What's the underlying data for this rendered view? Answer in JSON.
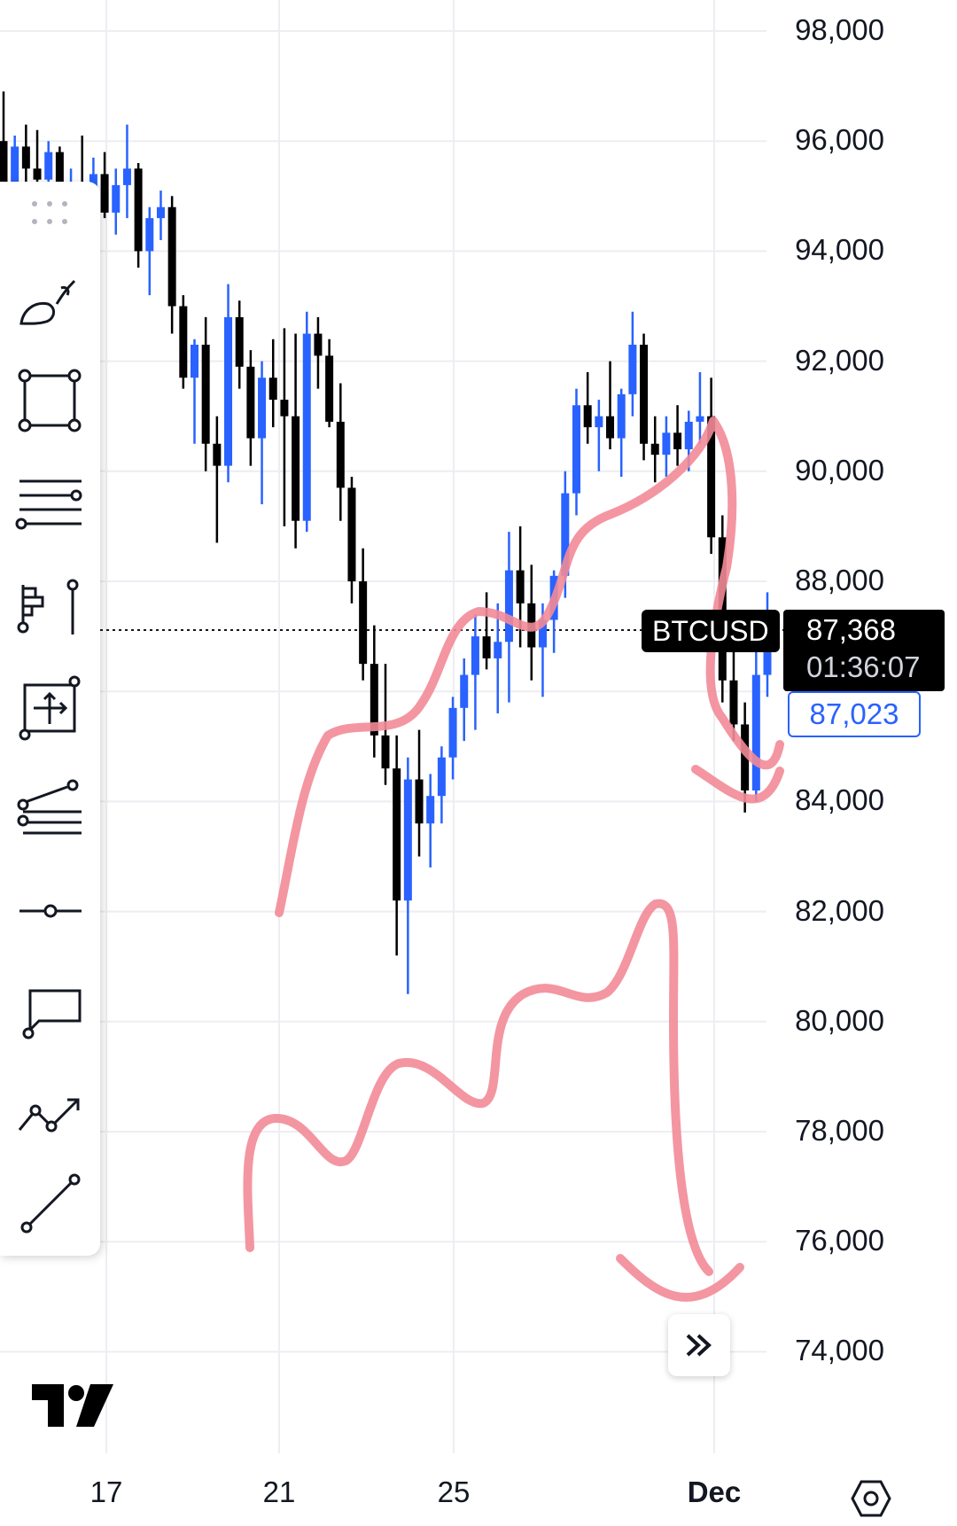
{
  "symbol": "BTCUSD",
  "last_price": "87,368",
  "countdown": "01:36:07",
  "bid_price": "87,023",
  "price_axis": [
    "98,000",
    "96,000",
    "94,000",
    "92,000",
    "90,000",
    "88,000",
    "86,000",
    "84,000",
    "82,000",
    "80,000",
    "78,000",
    "76,000",
    "74,000"
  ],
  "date_axis": [
    "17",
    "21",
    "25",
    "Dec"
  ],
  "colors": {
    "up": "#2962ff",
    "down": "#000000",
    "annotation": "#f28b97",
    "grid": "#eceef2"
  },
  "toolbar_icons": [
    "brush-icon",
    "rectangle-icon",
    "parallel-channel-icon",
    "long-position-icon",
    "measure-icon",
    "fib-retracement-icon",
    "horizontal-ray-icon",
    "callout-icon",
    "path-icon",
    "trend-line-icon"
  ],
  "chart_data": {
    "type": "candlestick",
    "ylim": [
      73000,
      99000
    ],
    "last_price": 87368,
    "candles_ohlc": [
      [
        96000,
        96900,
        94800,
        95000
      ],
      [
        95000,
        96100,
        94700,
        95900
      ],
      [
        95900,
        96300,
        95200,
        95500
      ],
      [
        95500,
        96200,
        95000,
        95300
      ],
      [
        95300,
        96000,
        94900,
        95800
      ],
      [
        95800,
        95900,
        94600,
        94900
      ],
      [
        94900,
        95500,
        94200,
        95200
      ],
      [
        95200,
        96100,
        94700,
        95000
      ],
      [
        95000,
        95700,
        94400,
        95400
      ],
      [
        95400,
        95800,
        94600,
        94700
      ],
      [
        94700,
        95500,
        94300,
        95200
      ],
      [
        95200,
        96300,
        94600,
        95500
      ],
      [
        95500,
        95600,
        93700,
        94000
      ],
      [
        94000,
        94800,
        93200,
        94600
      ],
      [
        94600,
        95100,
        94200,
        94800
      ],
      [
        94800,
        95000,
        92500,
        93000
      ],
      [
        93000,
        93200,
        91500,
        91700
      ],
      [
        91700,
        92400,
        90500,
        92300
      ],
      [
        92300,
        92800,
        90000,
        90500
      ],
      [
        90500,
        91000,
        88700,
        90100
      ],
      [
        90100,
        93400,
        89800,
        92800
      ],
      [
        92800,
        93100,
        91500,
        91900
      ],
      [
        91900,
        92200,
        90100,
        90600
      ],
      [
        90600,
        92000,
        89400,
        91700
      ],
      [
        91700,
        92400,
        90800,
        91300
      ],
      [
        91300,
        92600,
        89000,
        91000
      ],
      [
        91000,
        92500,
        88600,
        89100
      ],
      [
        89100,
        92900,
        88900,
        92500
      ],
      [
        92500,
        92800,
        91500,
        92100
      ],
      [
        92100,
        92400,
        90800,
        90900
      ],
      [
        90900,
        91600,
        89100,
        89700
      ],
      [
        89700,
        89900,
        87600,
        88000
      ],
      [
        88000,
        88600,
        86200,
        86500
      ],
      [
        86500,
        87200,
        84800,
        85200
      ],
      [
        85200,
        86500,
        84300,
        84600
      ],
      [
        84600,
        85200,
        81200,
        82200
      ],
      [
        82200,
        84800,
        80500,
        84400
      ],
      [
        84400,
        85300,
        83000,
        83600
      ],
      [
        83600,
        84500,
        82800,
        84100
      ],
      [
        84100,
        85000,
        83600,
        84800
      ],
      [
        84800,
        85900,
        84400,
        85700
      ],
      [
        85700,
        86600,
        85100,
        86300
      ],
      [
        86300,
        87400,
        85300,
        87000
      ],
      [
        87000,
        87800,
        86400,
        86600
      ],
      [
        86600,
        87600,
        85600,
        86900
      ],
      [
        86900,
        88900,
        85800,
        88200
      ],
      [
        88200,
        89000,
        86800,
        87600
      ],
      [
        87600,
        88300,
        86200,
        86800
      ],
      [
        86800,
        87600,
        85900,
        87300
      ],
      [
        87300,
        88200,
        86700,
        88100
      ],
      [
        88100,
        90000,
        87700,
        89600
      ],
      [
        89600,
        91500,
        89200,
        91200
      ],
      [
        91200,
        91800,
        90500,
        90800
      ],
      [
        90800,
        91300,
        90000,
        91000
      ],
      [
        91000,
        92000,
        90400,
        90600
      ],
      [
        90600,
        91500,
        89900,
        91400
      ],
      [
        91400,
        92900,
        91000,
        92300
      ],
      [
        92300,
        92500,
        90200,
        90500
      ],
      [
        90500,
        91000,
        89800,
        90300
      ],
      [
        90300,
        91000,
        89900,
        90700
      ],
      [
        90700,
        91200,
        90100,
        90400
      ],
      [
        90400,
        91100,
        90000,
        90900
      ],
      [
        90900,
        91800,
        90500,
        91000
      ],
      [
        91000,
        91700,
        88500,
        88800
      ],
      [
        88800,
        89200,
        85800,
        86200
      ],
      [
        86200,
        86800,
        85100,
        85400
      ],
      [
        85400,
        85800,
        83800,
        84200
      ],
      [
        84200,
        86800,
        84000,
        86300
      ],
      [
        86300,
        87800,
        85900,
        87368
      ]
    ]
  }
}
